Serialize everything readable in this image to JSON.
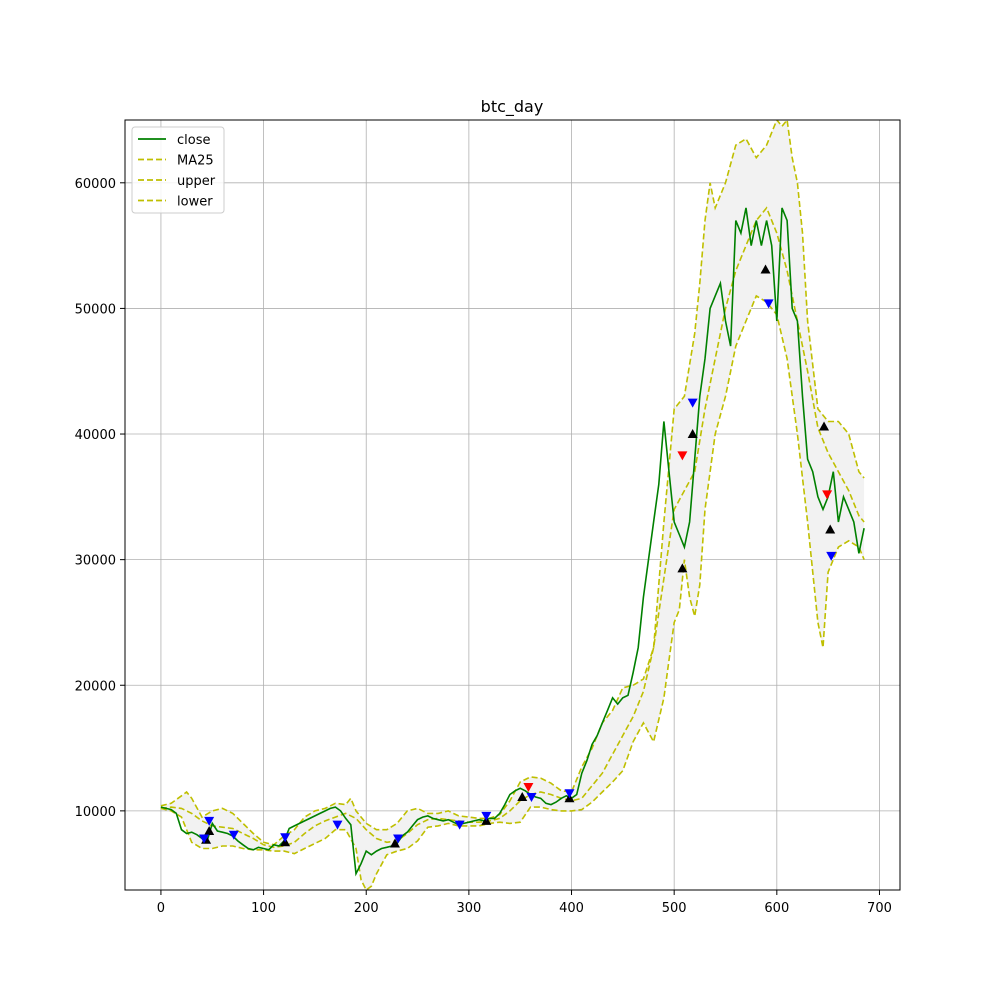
{
  "chart_data": {
    "type": "line",
    "title": "btc_day",
    "xlabel": "",
    "ylabel": "",
    "xlim": [
      -35,
      720
    ],
    "ylim": [
      3700,
      65000
    ],
    "xticks": [
      0,
      100,
      200,
      300,
      400,
      500,
      600,
      700
    ],
    "yticks": [
      10000,
      20000,
      30000,
      40000,
      50000,
      60000
    ],
    "grid": true,
    "legend_position": "top-left",
    "colors": {
      "close": "#008000",
      "band": "#bfbf00",
      "fill": "#f2f2f2",
      "buy_marker": "#0000ff",
      "sell_marker": "#000000",
      "alert_marker": "#ff0000"
    },
    "legend": [
      {
        "label": "close",
        "style": "solid",
        "color": "#008000"
      },
      {
        "label": "MA25",
        "style": "dashed",
        "color": "#bfbf00"
      },
      {
        "label": "upper",
        "style": "dashed",
        "color": "#bfbf00"
      },
      {
        "label": "lower",
        "style": "dashed",
        "color": "#bfbf00"
      }
    ],
    "close": {
      "x": [
        0,
        5,
        10,
        15,
        20,
        25,
        30,
        35,
        40,
        45,
        50,
        55,
        60,
        65,
        70,
        75,
        80,
        85,
        90,
        95,
        100,
        105,
        110,
        115,
        120,
        125,
        130,
        135,
        140,
        145,
        150,
        155,
        160,
        165,
        170,
        175,
        180,
        185,
        190,
        195,
        200,
        205,
        210,
        215,
        220,
        225,
        230,
        235,
        240,
        245,
        250,
        255,
        260,
        265,
        270,
        275,
        280,
        285,
        290,
        295,
        300,
        305,
        310,
        315,
        320,
        325,
        330,
        335,
        340,
        345,
        350,
        355,
        360,
        365,
        370,
        375,
        380,
        385,
        390,
        395,
        400,
        405,
        410,
        415,
        420,
        425,
        430,
        435,
        440,
        445,
        450,
        455,
        460,
        465,
        470,
        475,
        480,
        485,
        490,
        495,
        500,
        505,
        510,
        515,
        520,
        525,
        530,
        535,
        540,
        545,
        550,
        555,
        560,
        565,
        570,
        575,
        580,
        585,
        590,
        595,
        600,
        605,
        610,
        615,
        620,
        625,
        630,
        635,
        640,
        645,
        650,
        655,
        660,
        665,
        670,
        675,
        680,
        685
      ],
      "values": [
        10300,
        10200,
        10100,
        9800,
        8500,
        8200,
        8300,
        8100,
        7800,
        7600,
        9000,
        8400,
        8300,
        8200,
        8000,
        7600,
        7300,
        7000,
        6900,
        7100,
        7000,
        6900,
        7300,
        7200,
        7600,
        8600,
        8800,
        9000,
        9200,
        9400,
        9600,
        9800,
        10000,
        10200,
        10300,
        10000,
        9400,
        8900,
        5000,
        5800,
        6800,
        6500,
        6800,
        7000,
        7100,
        7200,
        7400,
        8000,
        8300,
        8800,
        9300,
        9500,
        9600,
        9400,
        9300,
        9200,
        9300,
        9100,
        8900,
        9000,
        9100,
        9200,
        9300,
        9200,
        9400,
        9400,
        9800,
        10500,
        11300,
        11600,
        11800,
        11600,
        11300,
        11100,
        11000,
        10600,
        10500,
        10700,
        11000,
        11200,
        11000,
        11300,
        13000,
        14000,
        15300,
        16000,
        17000,
        18000,
        19000,
        18500,
        19000,
        19200,
        21000,
        23000,
        27000,
        30000,
        33000,
        36000,
        41000,
        37000,
        33000,
        32000,
        31000,
        33000,
        38000,
        43000,
        46000,
        50000,
        51000,
        52000,
        49000,
        47000,
        57000,
        56000,
        58000,
        55000,
        57000,
        55000,
        57000,
        55000,
        49000,
        58000,
        57000,
        50000,
        49000,
        43000,
        38000,
        37000,
        35000,
        34000,
        35000,
        37000,
        33000,
        35000,
        34000,
        33000,
        30500,
        32500
      ]
    },
    "ma25": {
      "x": [
        0,
        10,
        20,
        30,
        40,
        50,
        60,
        70,
        80,
        90,
        100,
        110,
        120,
        130,
        140,
        150,
        160,
        170,
        180,
        190,
        200,
        210,
        220,
        230,
        240,
        250,
        260,
        270,
        280,
        290,
        300,
        310,
        320,
        330,
        340,
        350,
        360,
        370,
        380,
        390,
        400,
        410,
        420,
        430,
        440,
        450,
        460,
        470,
        480,
        490,
        500,
        510,
        520,
        530,
        540,
        550,
        560,
        570,
        580,
        590,
        600,
        610,
        620,
        630,
        640,
        650,
        660,
        670,
        680,
        685
      ],
      "values": [
        10200,
        10300,
        10200,
        9800,
        9200,
        8800,
        8700,
        8600,
        8200,
        7800,
        7300,
        7100,
        7200,
        7500,
        8200,
        8800,
        9200,
        9500,
        9800,
        9400,
        8500,
        7800,
        7500,
        7600,
        8200,
        8900,
        9300,
        9400,
        9300,
        9200,
        9100,
        9100,
        9200,
        9400,
        10000,
        10800,
        11300,
        11500,
        11300,
        11000,
        10800,
        11000,
        12000,
        13000,
        14500,
        16000,
        17500,
        19500,
        23000,
        28500,
        34000,
        35500,
        37000,
        42000,
        46000,
        50000,
        53000,
        55000,
        57000,
        58000,
        56000,
        53000,
        49000,
        45000,
        40500,
        38500,
        37000,
        35500,
        33500,
        33000
      ]
    },
    "upper": {
      "x": [
        0,
        10,
        20,
        25,
        30,
        40,
        50,
        60,
        70,
        80,
        90,
        100,
        110,
        120,
        130,
        140,
        150,
        160,
        170,
        180,
        185,
        190,
        195,
        200,
        210,
        220,
        230,
        240,
        250,
        260,
        270,
        280,
        290,
        300,
        310,
        320,
        330,
        340,
        350,
        360,
        370,
        380,
        390,
        400,
        410,
        420,
        430,
        440,
        450,
        460,
        470,
        480,
        490,
        500,
        510,
        520,
        525,
        530,
        535,
        540,
        550,
        560,
        570,
        580,
        590,
        600,
        605,
        610,
        615,
        620,
        625,
        630,
        640,
        650,
        660,
        670,
        680,
        685
      ],
      "values": [
        10400,
        10600,
        11200,
        11500,
        11000,
        9500,
        10000,
        10200,
        9800,
        9000,
        8200,
        7500,
        7300,
        8000,
        8500,
        9500,
        10000,
        10200,
        10600,
        10500,
        11000,
        10000,
        9500,
        9000,
        8500,
        8500,
        9000,
        10000,
        10200,
        9800,
        9800,
        10000,
        9600,
        9500,
        9400,
        9400,
        9700,
        10800,
        12300,
        12700,
        12600,
        12200,
        11600,
        11500,
        13500,
        15000,
        17000,
        18000,
        19800,
        20000,
        20500,
        23000,
        33000,
        42000,
        43000,
        48000,
        52000,
        57000,
        60000,
        58000,
        60000,
        63000,
        63500,
        62000,
        63000,
        65000,
        64500,
        65000,
        62000,
        60000,
        56000,
        49000,
        42000,
        41000,
        41000,
        40000,
        37000,
        36500
      ]
    },
    "lower": {
      "x": [
        0,
        10,
        20,
        30,
        40,
        50,
        60,
        70,
        80,
        90,
        100,
        110,
        120,
        130,
        140,
        150,
        160,
        170,
        180,
        190,
        195,
        200,
        205,
        210,
        220,
        230,
        240,
        250,
        260,
        270,
        280,
        290,
        300,
        310,
        320,
        330,
        340,
        350,
        360,
        370,
        380,
        390,
        400,
        410,
        420,
        430,
        440,
        450,
        460,
        470,
        480,
        490,
        495,
        500,
        505,
        510,
        515,
        520,
        525,
        530,
        540,
        550,
        560,
        570,
        580,
        590,
        600,
        610,
        620,
        630,
        640,
        645,
        650,
        660,
        670,
        680,
        685
      ],
      "values": [
        10200,
        10000,
        9500,
        7500,
        7000,
        7000,
        7200,
        7200,
        7000,
        6900,
        6900,
        6800,
        6800,
        6600,
        7000,
        7400,
        7800,
        8500,
        8500,
        7000,
        4500,
        3700,
        4000,
        5000,
        6500,
        6800,
        7000,
        7600,
        8700,
        8800,
        9000,
        8800,
        8800,
        8800,
        9000,
        9100,
        9000,
        9100,
        10300,
        10300,
        10100,
        10000,
        10000,
        10100,
        10700,
        11500,
        12300,
        13200,
        15500,
        17000,
        15500,
        19000,
        22000,
        25000,
        26000,
        30000,
        27000,
        25500,
        28000,
        34000,
        40000,
        43000,
        47000,
        49000,
        51000,
        50500,
        49500,
        46000,
        40000,
        33000,
        25000,
        23000,
        29000,
        31000,
        31500,
        31000,
        30000
      ]
    },
    "markers": [
      {
        "x": 44,
        "y": 7700,
        "type": "sell",
        "symbol": "triangle-up",
        "color": "#000000"
      },
      {
        "x": 47,
        "y": 8400,
        "type": "sell",
        "symbol": "triangle-up",
        "color": "#000000"
      },
      {
        "x": 47,
        "y": 9200,
        "type": "buy",
        "symbol": "triangle-down",
        "color": "#0000ff"
      },
      {
        "x": 42,
        "y": 7800,
        "type": "buy",
        "symbol": "triangle-down",
        "color": "#0000ff"
      },
      {
        "x": 71,
        "y": 8100,
        "type": "buy",
        "symbol": "triangle-down",
        "color": "#0000ff"
      },
      {
        "x": 121,
        "y": 7500,
        "type": "sell",
        "symbol": "triangle-up",
        "color": "#000000"
      },
      {
        "x": 121,
        "y": 7900,
        "type": "buy",
        "symbol": "triangle-down",
        "color": "#0000ff"
      },
      {
        "x": 172,
        "y": 8900,
        "type": "buy",
        "symbol": "triangle-down",
        "color": "#0000ff"
      },
      {
        "x": 228,
        "y": 7400,
        "type": "sell",
        "symbol": "triangle-up",
        "color": "#000000"
      },
      {
        "x": 231,
        "y": 7800,
        "type": "buy",
        "symbol": "triangle-down",
        "color": "#0000ff"
      },
      {
        "x": 291,
        "y": 8900,
        "type": "buy",
        "symbol": "triangle-down",
        "color": "#0000ff"
      },
      {
        "x": 317,
        "y": 9200,
        "type": "sell",
        "symbol": "triangle-up",
        "color": "#000000"
      },
      {
        "x": 317,
        "y": 9600,
        "type": "buy",
        "symbol": "triangle-down",
        "color": "#0000ff"
      },
      {
        "x": 352,
        "y": 11100,
        "type": "sell",
        "symbol": "triangle-up",
        "color": "#000000"
      },
      {
        "x": 358,
        "y": 11900,
        "type": "alert",
        "symbol": "triangle-down",
        "color": "#ff0000"
      },
      {
        "x": 361,
        "y": 11100,
        "type": "buy",
        "symbol": "triangle-down",
        "color": "#0000ff"
      },
      {
        "x": 398,
        "y": 11000,
        "type": "sell",
        "symbol": "triangle-up",
        "color": "#000000"
      },
      {
        "x": 398,
        "y": 11400,
        "type": "buy",
        "symbol": "triangle-down",
        "color": "#0000ff"
      },
      {
        "x": 508,
        "y": 38300,
        "type": "alert",
        "symbol": "triangle-down",
        "color": "#ff0000"
      },
      {
        "x": 508,
        "y": 29300,
        "type": "sell",
        "symbol": "triangle-up",
        "color": "#000000"
      },
      {
        "x": 518,
        "y": 42500,
        "type": "buy",
        "symbol": "triangle-down",
        "color": "#0000ff"
      },
      {
        "x": 518,
        "y": 40000,
        "type": "sell",
        "symbol": "triangle-up",
        "color": "#000000"
      },
      {
        "x": 589,
        "y": 53100,
        "type": "sell",
        "symbol": "triangle-up",
        "color": "#000000"
      },
      {
        "x": 592,
        "y": 50400,
        "type": "buy",
        "symbol": "triangle-down",
        "color": "#0000ff"
      },
      {
        "x": 646,
        "y": 40600,
        "type": "sell",
        "symbol": "triangle-up",
        "color": "#000000"
      },
      {
        "x": 649,
        "y": 35200,
        "type": "alert",
        "symbol": "triangle-down",
        "color": "#ff0000"
      },
      {
        "x": 652,
        "y": 32400,
        "type": "sell",
        "symbol": "triangle-up",
        "color": "#000000"
      },
      {
        "x": 653,
        "y": 30300,
        "type": "buy",
        "symbol": "triangle-down",
        "color": "#0000ff"
      }
    ]
  }
}
